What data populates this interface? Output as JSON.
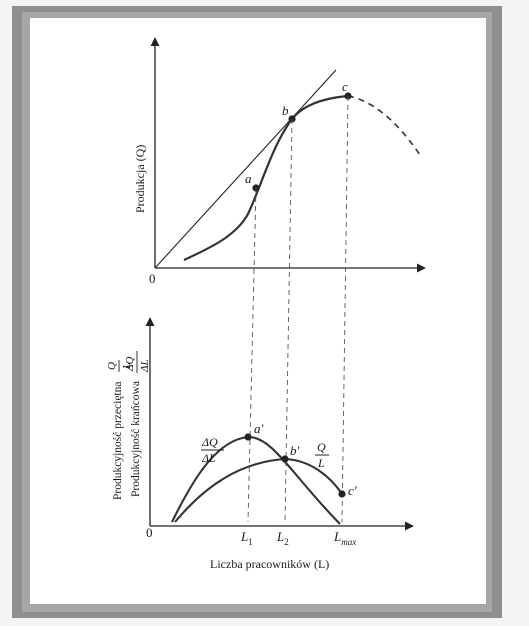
{
  "top_chart": {
    "y_label": "Produkcja (Q)",
    "origin": "0",
    "points": [
      {
        "name": "a",
        "label": "a"
      },
      {
        "name": "b",
        "label": "b"
      },
      {
        "name": "c",
        "label": "c"
      }
    ]
  },
  "bottom_chart": {
    "y_label_avg": "Produkcyjność przeciętna",
    "y_label_avg_frac": {
      "num": "Q",
      "den": "L"
    },
    "y_label_marg": "Produkcyjność krańcowa",
    "y_label_marg_frac": {
      "num": "ΔQ",
      "den": "ΔL"
    },
    "origin": "0",
    "mp_curve_frac": {
      "num": "ΔQ",
      "den": "ΔL"
    },
    "ap_curve_frac": {
      "num": "Q",
      "den": "L"
    },
    "points": [
      {
        "name": "a-prime",
        "label": "a'"
      },
      {
        "name": "b-prime",
        "label": "b'"
      },
      {
        "name": "c-prime",
        "label": "c'"
      }
    ],
    "x_ticks": [
      {
        "name": "L1",
        "base": "L",
        "sub": "1"
      },
      {
        "name": "L2",
        "base": "L",
        "sub": "2"
      },
      {
        "name": "Lmax",
        "base": "L",
        "sub": "max"
      }
    ],
    "x_label": "Liczba pracowników (L)"
  },
  "colors": {
    "page_border": "#8a8a8a",
    "paper": "#ffffff",
    "ink": "#1a1a1a",
    "curve": "#3a3a3a"
  }
}
